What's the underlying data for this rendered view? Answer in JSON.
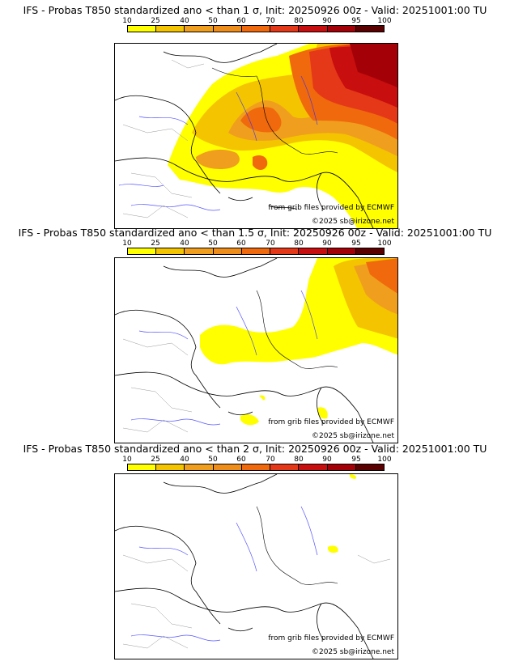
{
  "colorbar": {
    "ticks": [
      "10",
      "25",
      "40",
      "50",
      "60",
      "70",
      "80",
      "90",
      "95",
      "100"
    ],
    "colors": [
      "#ffff00",
      "#f4c400",
      "#f09e1e",
      "#ee8d1a",
      "#f0690c",
      "#e43818",
      "#c80e0e",
      "#a40008",
      "#5a0000"
    ]
  },
  "panels": [
    {
      "title": "IFS - Probas T850  standardized ano < than 1 σ, Init: 20250926 00z - Valid: 20251001:00 TU"
    },
    {
      "title": "IFS - Probas T850  standardized ano < than 1.5 σ, Init: 20250926 00z - Valid: 20251001:00 TU"
    },
    {
      "title": "IFS - Probas T850  standardized ano < than 2 σ, Init: 20250926 00z - Valid: 20251001:00 TU"
    }
  ],
  "credits": {
    "source": "from grib files provided by ECMWF",
    "copyright": "©2025 sb@irizone.net"
  }
}
